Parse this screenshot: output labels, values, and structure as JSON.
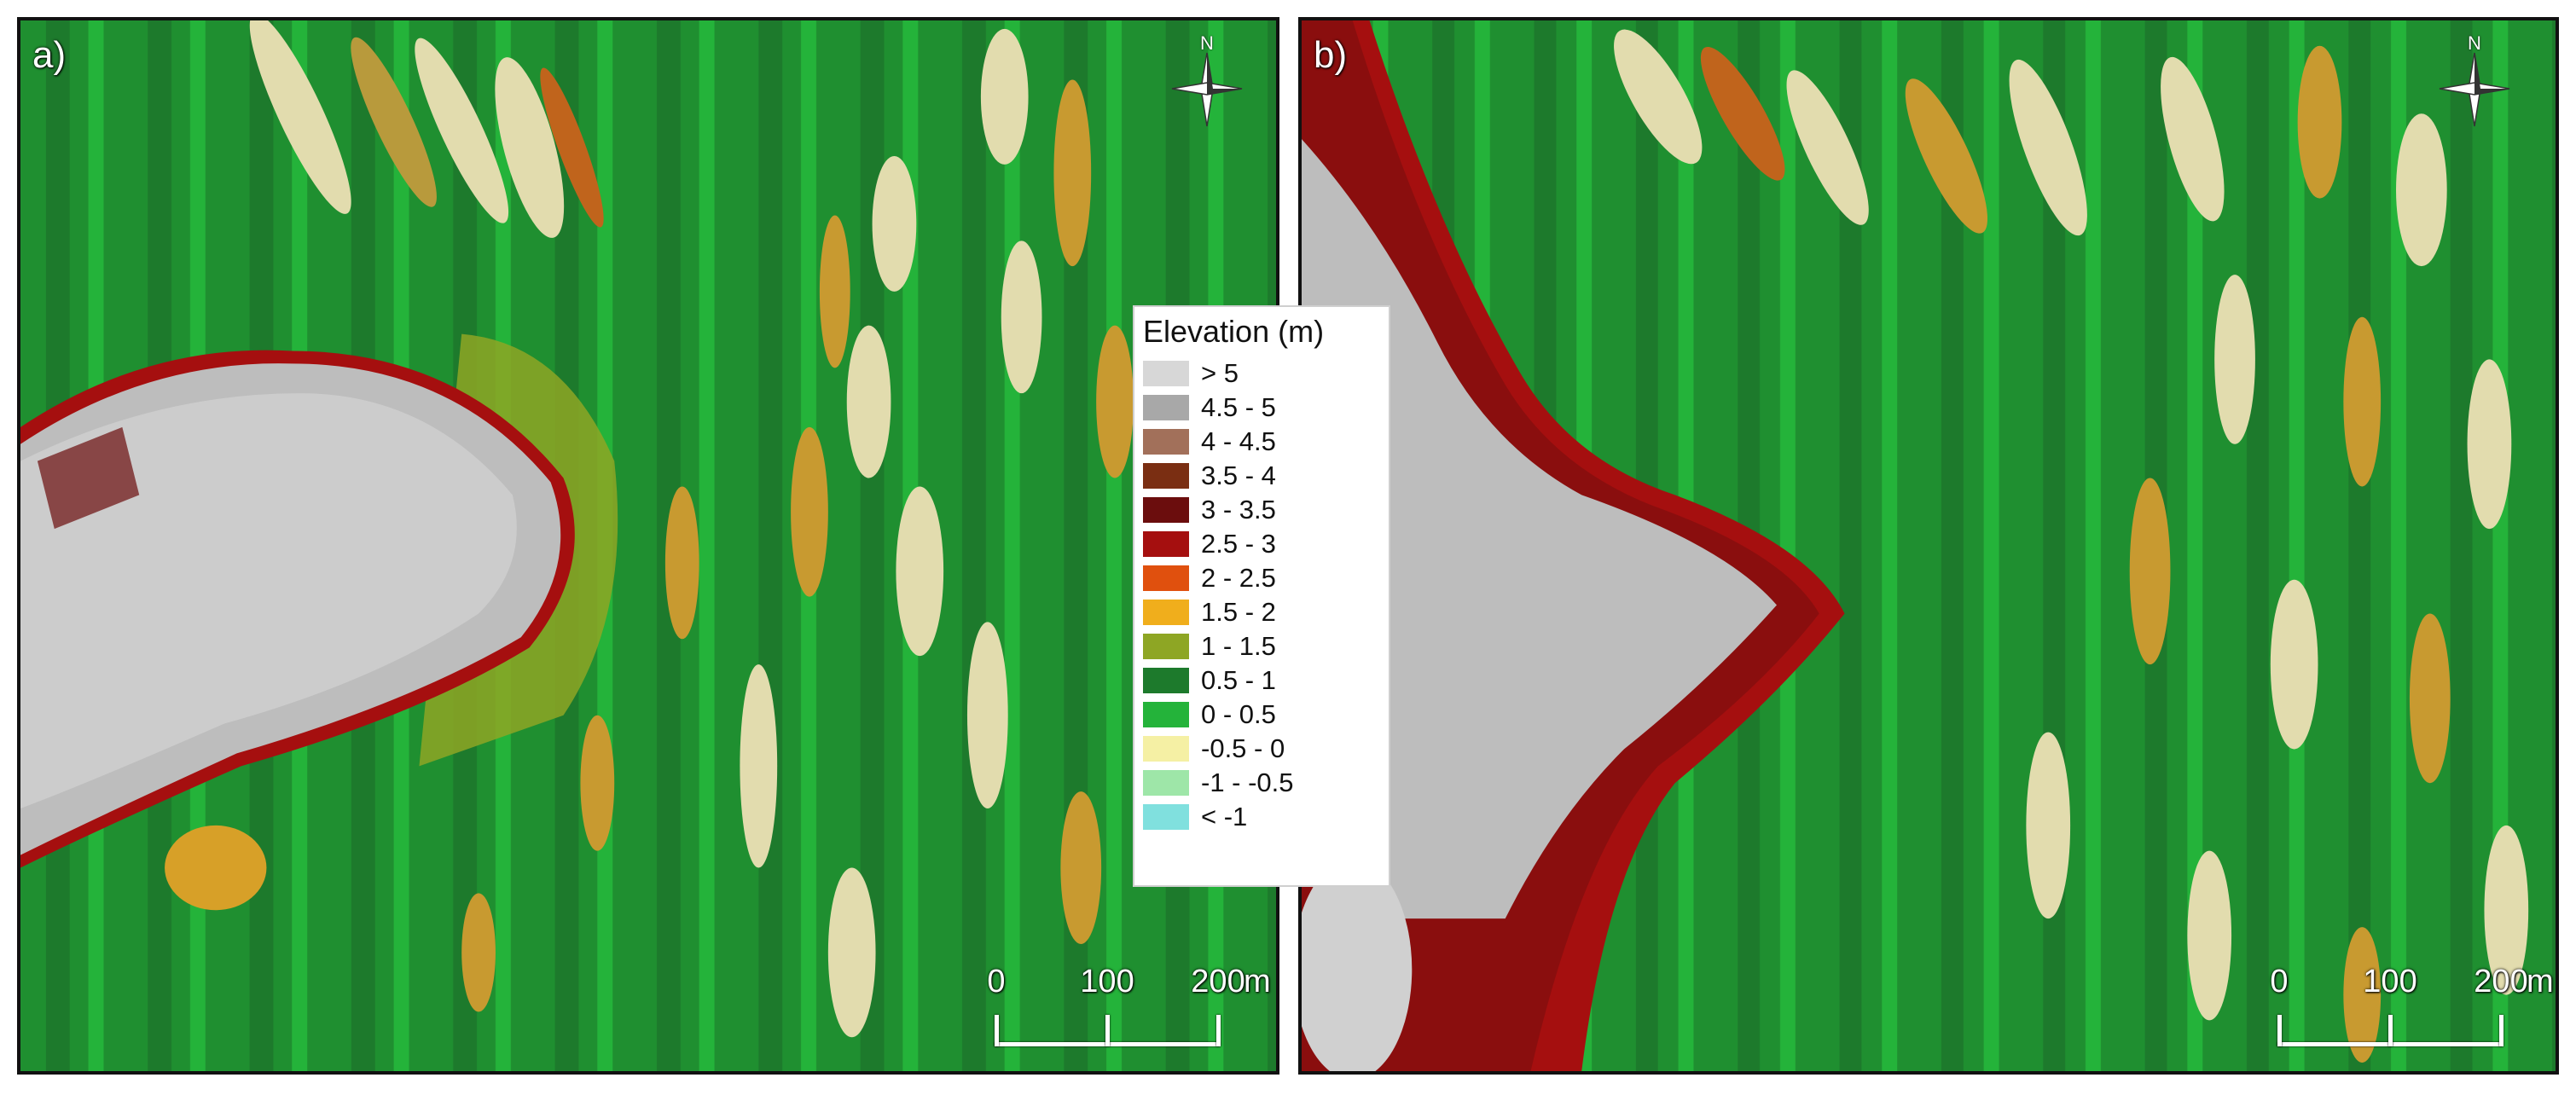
{
  "panels": [
    {
      "label": "a)"
    },
    {
      "label": "b)"
    }
  ],
  "north_arrow": {
    "letter": "N"
  },
  "scale_bar": {
    "ticks": [
      "0",
      "100",
      "200"
    ],
    "unit": "m"
  },
  "legend": {
    "title": "Elevation (m)",
    "items": [
      {
        "label": "> 5",
        "color": "#d7d7d7"
      },
      {
        "label": "4.5 - 5",
        "color": "#a8a8a8"
      },
      {
        "label": "4 - 4.5",
        "color": "#a2705a"
      },
      {
        "label": "3.5 - 4",
        "color": "#7a2e12"
      },
      {
        "label": "3 - 3.5",
        "color": "#6b0d0d"
      },
      {
        "label": "2.5 - 3",
        "color": "#a50f0f"
      },
      {
        "label": "2 - 2.5",
        "color": "#e0500e"
      },
      {
        "label": "1.5 - 2",
        "color": "#f0ae1c"
      },
      {
        "label": "1 - 1.5",
        "color": "#8ea624"
      },
      {
        "label": "0.5 - 1",
        "color": "#1d7a2c"
      },
      {
        "label": "0 - 0.5",
        "color": "#24b33a"
      },
      {
        "label": "-0.5 - 0",
        "color": "#f5f0a4"
      },
      {
        "label": "-1 - -0.5",
        "color": "#9ee6a8"
      },
      {
        "label": "< -1",
        "color": "#80e0de"
      }
    ]
  }
}
